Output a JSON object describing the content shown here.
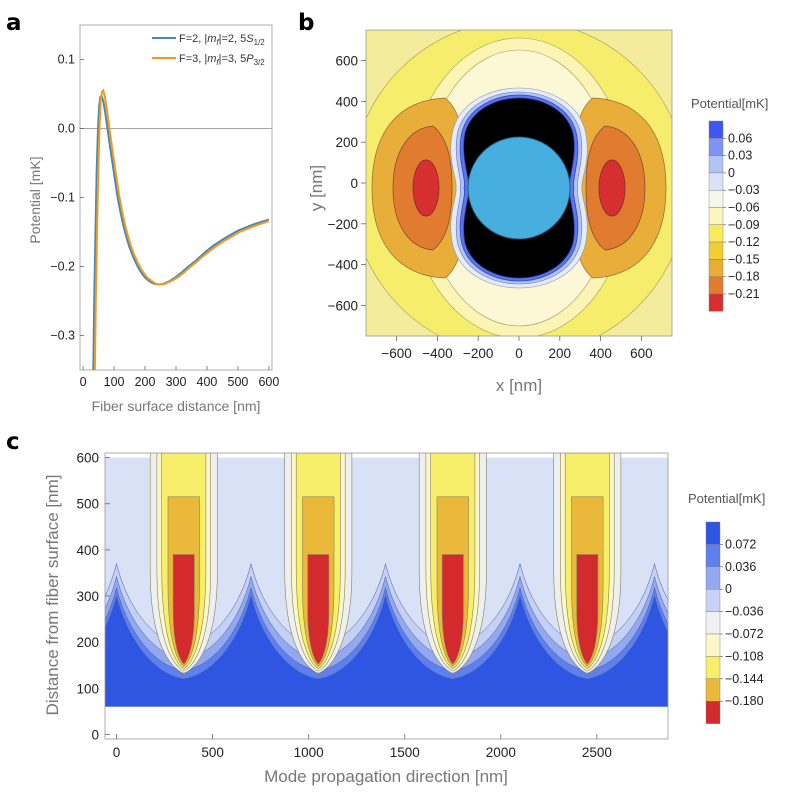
{
  "panels": {
    "a": {
      "letter": "a"
    },
    "b": {
      "letter": "b"
    },
    "c": {
      "letter": "c"
    }
  },
  "colorbars": {
    "b": {
      "title": "Potential[mK]",
      "colors": [
        "#3c58f0",
        "#7e93f3",
        "#b3c3f5",
        "#dbe2f8",
        "#f6f7ec",
        "#fcf5bf",
        "#f8ea5a",
        "#f1cf2e",
        "#e9ac35",
        "#e07b30",
        "#d62f2f"
      ],
      "labels": [
        "0.06",
        "0.03",
        "0",
        "−0.03",
        "−0.06",
        "−0.09",
        "−0.12",
        "−0.15",
        "−0.18",
        "−0.21"
      ]
    },
    "c": {
      "title": "Potential[mK]",
      "colors": [
        "#2f56e2",
        "#5e80ec",
        "#92a8ef",
        "#c7d2f5",
        "#eff1f2",
        "#fbf7c8",
        "#f7ee6a",
        "#ebb93a",
        "#d32a2e"
      ],
      "labels": [
        "0.072",
        "0.036",
        "0",
        "−0.036",
        "−0.072",
        "−0.108",
        "−0.144",
        "−0.180"
      ]
    }
  },
  "chart_data": [
    {
      "panel": "a",
      "type": "line",
      "xlabel": "Fiber surface distance [nm]",
      "ylabel": "Potential [mK]",
      "xlim": [
        -10,
        610
      ],
      "ylim": [
        -0.35,
        0.15
      ],
      "xticks": [
        0,
        100,
        200,
        300,
        400,
        500,
        600
      ],
      "yticks": [
        0.1,
        0.0,
        -0.1,
        -0.2,
        -0.3
      ],
      "ytick_labels": [
        "0.1",
        "0.0",
        "−0.1",
        "−0.2",
        "−0.3"
      ],
      "series": [
        {
          "name": "F=2, |mf|=2, 5S1/2",
          "color": "#4a86b8",
          "x": [
            33,
            36,
            40,
            44,
            48,
            52,
            56,
            60,
            65,
            70,
            75,
            80,
            90,
            100,
            110,
            120,
            130,
            140,
            150,
            160,
            170,
            180,
            190,
            200,
            210,
            220,
            230,
            240,
            250,
            260,
            270,
            280,
            300,
            320,
            340,
            360,
            380,
            400,
            420,
            450,
            500,
            550,
            600
          ],
          "values": [
            -0.35,
            -0.25,
            -0.15,
            -0.06,
            0.0,
            0.033,
            0.046,
            0.047,
            0.04,
            0.027,
            0.012,
            -0.004,
            -0.036,
            -0.066,
            -0.096,
            -0.12,
            -0.141,
            -0.158,
            -0.172,
            -0.184,
            -0.194,
            -0.203,
            -0.21,
            -0.216,
            -0.22,
            -0.223,
            -0.225,
            -0.226,
            -0.226,
            -0.225,
            -0.223,
            -0.221,
            -0.215,
            -0.208,
            -0.2,
            -0.193,
            -0.185,
            -0.177,
            -0.17,
            -0.161,
            -0.148,
            -0.139,
            -0.132
          ]
        },
        {
          "name": "F=3, |mf|=3, 5P3/2",
          "color": "#f39a1e",
          "x": [
            38,
            41,
            45,
            49,
            53,
            57,
            61,
            65,
            70,
            75,
            80,
            85,
            95,
            105,
            115,
            125,
            135,
            145,
            155,
            165,
            175,
            185,
            195,
            205,
            215,
            225,
            235,
            245,
            255,
            265,
            275,
            285,
            305,
            325,
            345,
            365,
            385,
            405,
            425,
            455,
            505,
            555,
            600
          ],
          "values": [
            -0.35,
            -0.25,
            -0.15,
            -0.06,
            0.0,
            0.04,
            0.053,
            0.055,
            0.047,
            0.033,
            0.017,
            0.0,
            -0.032,
            -0.063,
            -0.093,
            -0.118,
            -0.139,
            -0.156,
            -0.171,
            -0.183,
            -0.193,
            -0.202,
            -0.209,
            -0.215,
            -0.219,
            -0.222,
            -0.225,
            -0.226,
            -0.226,
            -0.225,
            -0.223,
            -0.221,
            -0.216,
            -0.209,
            -0.201,
            -0.194,
            -0.186,
            -0.179,
            -0.172,
            -0.163,
            -0.15,
            -0.141,
            -0.134
          ]
        }
      ]
    },
    {
      "panel": "b",
      "type": "heatmap",
      "xlabel": "x [nm]",
      "ylabel": "y [nm]",
      "xlim": [
        -750,
        750
      ],
      "ylim": [
        -750,
        750
      ],
      "xticks": [
        -600,
        -400,
        -200,
        0,
        200,
        400,
        600
      ],
      "xtick_labels": [
        "−600",
        "−400",
        "−200",
        "0",
        "200",
        "400",
        "600"
      ],
      "yticks": [
        600,
        400,
        200,
        0,
        -200,
        -400,
        -600
      ],
      "ytick_labels": [
        "600",
        "400",
        "200",
        "0",
        "−200",
        "−400",
        "−600"
      ],
      "fiber_radius_nm": 250,
      "description_levels": [
        0.06,
        0.03,
        0,
        -0.03,
        -0.06,
        -0.09,
        -0.12,
        -0.15,
        -0.18,
        -0.21
      ]
    },
    {
      "panel": "c",
      "type": "heatmap",
      "xlabel": "Mode propagation direction [nm]",
      "ylabel": "Distance from fiber surface [nm]",
      "xlim": [
        -60,
        2870
      ],
      "ylim": [
        -10,
        610
      ],
      "xticks": [
        0,
        500,
        1000,
        1500,
        2000,
        2500
      ],
      "yticks": [
        0,
        100,
        200,
        300,
        400,
        500,
        600
      ],
      "lobe_centers_nm": [
        350,
        1050,
        1750,
        2450
      ],
      "period_nm": 700,
      "levels": [
        0.072,
        0.036,
        0,
        -0.036,
        -0.072,
        -0.108,
        -0.144,
        -0.18
      ]
    }
  ]
}
